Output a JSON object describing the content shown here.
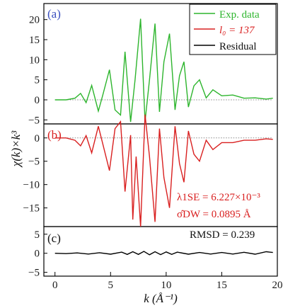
{
  "chart_data": {
    "type": "line",
    "xlabel": "k (Å⁻¹)",
    "ylabel": "χ(k)×k³",
    "x_range": [
      -1,
      20
    ],
    "x_ticks": [
      0,
      5,
      10,
      15,
      20
    ],
    "panels": [
      {
        "label": "(a)",
        "ylim": [
          -6,
          24
        ],
        "y_ticks": [
          -5,
          0,
          5,
          10,
          15,
          20
        ],
        "series": [
          {
            "name": "Exp. data",
            "color": "#2db52d",
            "points": [
              [
                0,
                0
              ],
              [
                1,
                0
              ],
              [
                1.8,
                0.4
              ],
              [
                2.3,
                1.6
              ],
              [
                2.8,
                -0.7
              ],
              [
                3.3,
                3.6
              ],
              [
                3.9,
                -2.8
              ],
              [
                4.3,
                1.2
              ],
              [
                4.9,
                7.5
              ],
              [
                5.4,
                -2.5
              ],
              [
                5.9,
                -3.8
              ],
              [
                6.3,
                12.0
              ],
              [
                6.8,
                -5.5
              ],
              [
                7.2,
                5.0
              ],
              [
                7.7,
                20.2
              ],
              [
                8.1,
                -5.4
              ],
              [
                8.5,
                5.0
              ],
              [
                9.0,
                19.0
              ],
              [
                9.4,
                -3.0
              ],
              [
                9.8,
                9.5
              ],
              [
                10.3,
                16.5
              ],
              [
                10.8,
                -2.5
              ],
              [
                11.2,
                6.0
              ],
              [
                11.6,
                9.5
              ],
              [
                12.0,
                -1.8
              ],
              [
                12.5,
                3.5
              ],
              [
                13.0,
                5.0
              ],
              [
                13.6,
                0.5
              ],
              [
                14.2,
                2.5
              ],
              [
                15.0,
                1.0
              ],
              [
                16.0,
                1.2
              ],
              [
                17.0,
                0.4
              ],
              [
                18.0,
                0.5
              ],
              [
                19.0,
                0.2
              ],
              [
                19.6,
                0.4
              ]
            ]
          },
          {
            "name": "l₀ = 137",
            "color": "#d92020"
          },
          {
            "name": "Residual",
            "color": "#000000"
          }
        ]
      },
      {
        "label": "(b)",
        "ylim": [
          -19,
          3
        ],
        "y_ticks": [
          0,
          -5,
          -10,
          -15
        ],
        "series": [
          {
            "name": "l₀ = 137",
            "color": "#d92020",
            "points": [
              [
                0,
                0
              ],
              [
                1,
                0
              ],
              [
                1.8,
                -0.5
              ],
              [
                2.3,
                -1.7
              ],
              [
                2.8,
                0.5
              ],
              [
                3.3,
                -3.2
              ],
              [
                3.9,
                2.5
              ],
              [
                4.3,
                -1.3
              ],
              [
                4.9,
                -7.0
              ],
              [
                5.4,
                2.0
              ],
              [
                5.9,
                3.5
              ],
              [
                6.3,
                -11.5
              ],
              [
                6.8,
                0.6
              ],
              [
                7.0,
                -17.5
              ],
              [
                7.3,
                -4.0
              ],
              [
                7.7,
                -19.0
              ],
              [
                8.1,
                5.0
              ],
              [
                8.5,
                -4.0
              ],
              [
                9.0,
                -18.0
              ],
              [
                9.4,
                2.0
              ],
              [
                9.8,
                -8.5
              ],
              [
                10.3,
                -15.0
              ],
              [
                10.8,
                2.5
              ],
              [
                11.2,
                -5.5
              ],
              [
                11.6,
                -9.5
              ],
              [
                12.0,
                1.5
              ],
              [
                12.5,
                -3.5
              ],
              [
                13.0,
                -5.0
              ],
              [
                13.6,
                -0.5
              ],
              [
                14.2,
                -2.5
              ],
              [
                15.0,
                -1.0
              ],
              [
                16.0,
                -1.0
              ],
              [
                17.0,
                -0.5
              ],
              [
                18.0,
                -0.5
              ],
              [
                19.0,
                -0.2
              ],
              [
                19.6,
                -0.3
              ]
            ]
          }
        ]
      },
      {
        "label": "(c)",
        "ylim": [
          -6,
          7
        ],
        "y_ticks": [
          5,
          0,
          -5
        ],
        "series": [
          {
            "name": "Residual",
            "color": "#000000",
            "points": [
              [
                0,
                0
              ],
              [
                1,
                -0.1
              ],
              [
                2,
                0.1
              ],
              [
                3,
                -0.2
              ],
              [
                4,
                0.15
              ],
              [
                5,
                -0.25
              ],
              [
                6,
                0.3
              ],
              [
                6.5,
                -0.3
              ],
              [
                7,
                0.4
              ],
              [
                7.5,
                -0.3
              ],
              [
                8,
                0.5
              ],
              [
                8.5,
                -0.4
              ],
              [
                9,
                0.4
              ],
              [
                9.5,
                -0.35
              ],
              [
                10,
                0.35
              ],
              [
                10.5,
                -0.3
              ],
              [
                11,
                0.3
              ],
              [
                12,
                -0.25
              ],
              [
                13,
                0.2
              ],
              [
                14,
                -0.2
              ],
              [
                15,
                0.2
              ],
              [
                16,
                -0.2
              ],
              [
                17,
                0.25
              ],
              [
                18,
                -0.25
              ],
              [
                19,
                0.4
              ],
              [
                19.6,
                0.2
              ]
            ]
          }
        ]
      }
    ],
    "annotations": {
      "lambda_label": "λ1SE = 6.227×10⁻³",
      "sigma_label": "σ̂DW = 0.0895 Å",
      "rmsd_label": "RMSD = 0.239"
    },
    "legend_placement": "top-right"
  }
}
